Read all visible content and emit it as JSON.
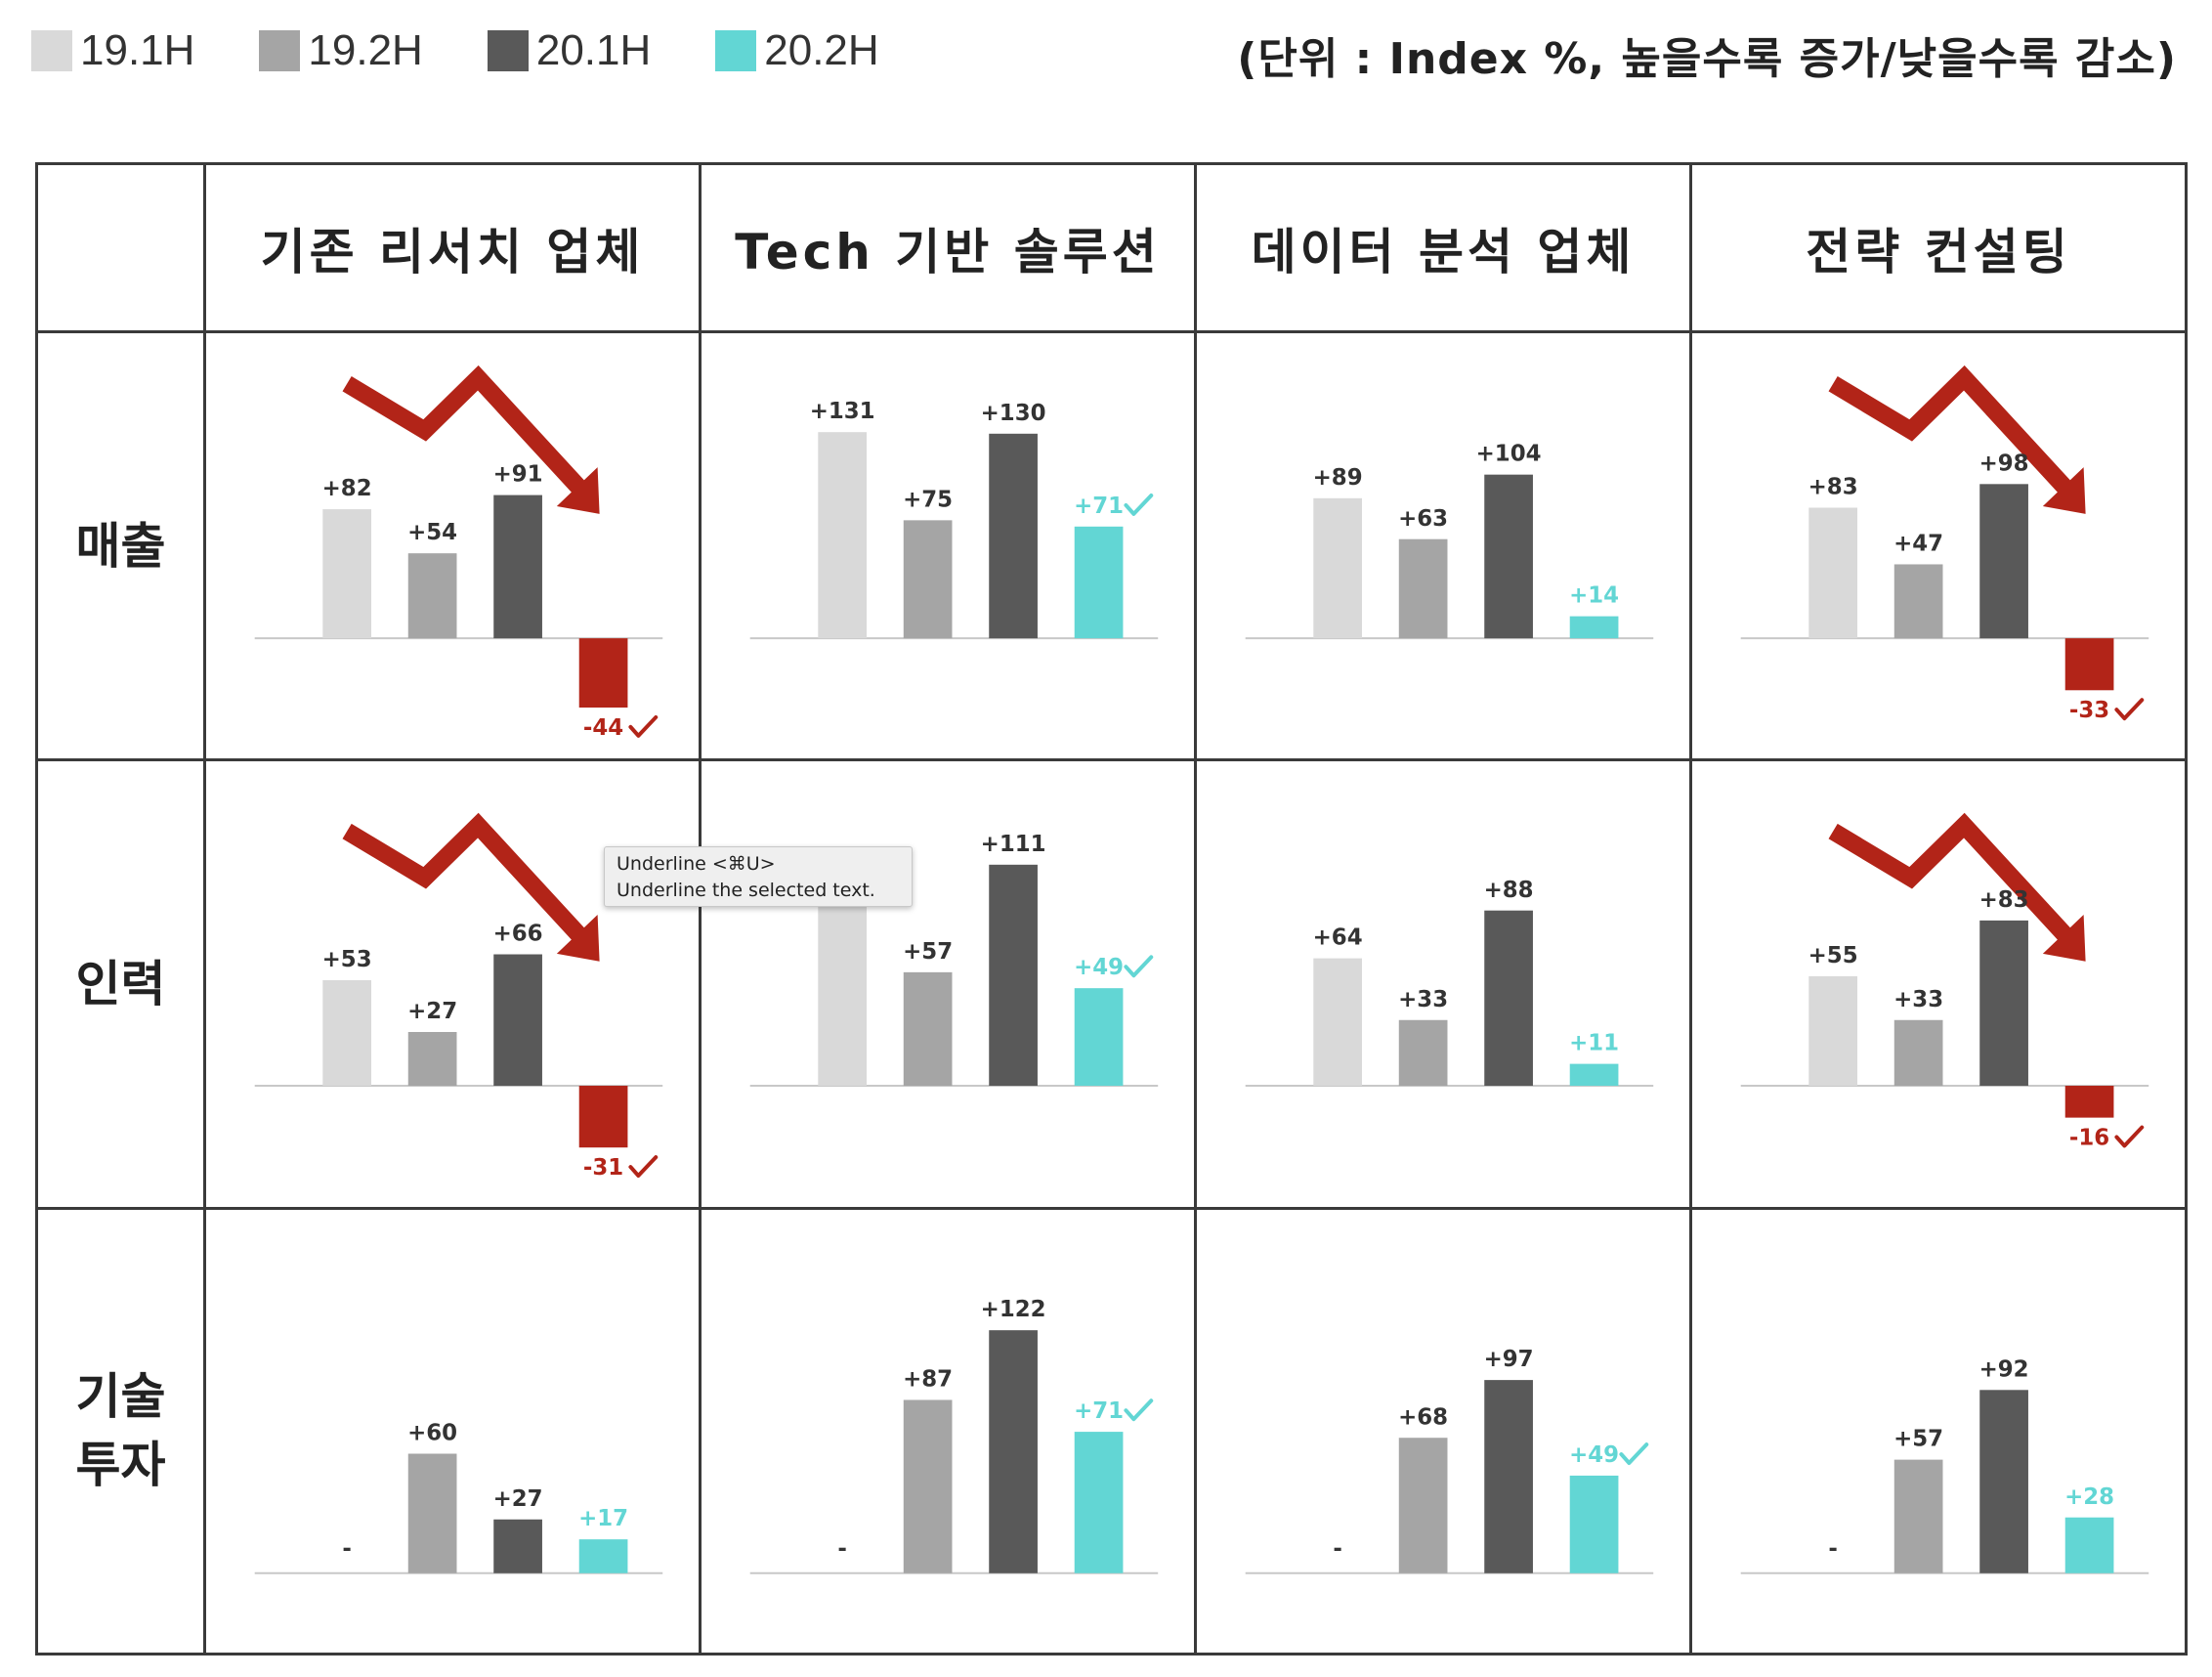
{
  "colors": {
    "s1": "#d9d9d9",
    "s2": "#a5a5a5",
    "s3": "#595959",
    "s4": "#62d6d4",
    "neg": "#b22418",
    "label": "#333333"
  },
  "legend": [
    {
      "label": "19.1H",
      "color": "#d9d9d9"
    },
    {
      "label": "19.2H",
      "color": "#a5a5a5"
    },
    {
      "label": "20.1H",
      "color": "#595959"
    },
    {
      "label": "20.2H",
      "color": "#62d6d4"
    }
  ],
  "unit_note": "(단위 : Index %, 높을수록 증가/낮을수록 감소)",
  "columns": [
    "기존 리서치 업체",
    "Tech 기반 솔루션",
    "데이터 분석 업체",
    "전략 컨설팅"
  ],
  "rows": [
    "매출",
    "인력",
    "기술\n투자"
  ],
  "tooltip": {
    "line1": "Underline <⌘U>",
    "line2": "Underline the selected text."
  },
  "chart_data": [
    {
      "type": "bar",
      "row": "매출",
      "column": "기존 리서치 업체",
      "categories": [
        "19.1H",
        "19.2H",
        "20.1H",
        "20.2H"
      ],
      "values": [
        82,
        54,
        91,
        -44
      ],
      "labels": [
        "+82",
        "+54",
        "+91",
        "-44"
      ],
      "trend_arrow": "down",
      "checked": 3
    },
    {
      "type": "bar",
      "row": "매출",
      "column": "Tech 기반 솔루션",
      "categories": [
        "19.1H",
        "19.2H",
        "20.1H",
        "20.2H"
      ],
      "values": [
        131,
        75,
        130,
        71
      ],
      "labels": [
        "+131",
        "+75",
        "+130",
        "+71"
      ],
      "trend_arrow": null,
      "checked": 3
    },
    {
      "type": "bar",
      "row": "매출",
      "column": "데이터 분석 업체",
      "categories": [
        "19.1H",
        "19.2H",
        "20.1H",
        "20.2H"
      ],
      "values": [
        89,
        63,
        104,
        14
      ],
      "labels": [
        "+89",
        "+63",
        "+104",
        "+14"
      ],
      "trend_arrow": null,
      "checked": null
    },
    {
      "type": "bar",
      "row": "매출",
      "column": "전략 컨설팅",
      "categories": [
        "19.1H",
        "19.2H",
        "20.1H",
        "20.2H"
      ],
      "values": [
        83,
        47,
        98,
        -33
      ],
      "labels": [
        "+83",
        "+47",
        "+98",
        "-33"
      ],
      "trend_arrow": "down",
      "checked": 3
    },
    {
      "type": "bar",
      "row": "인력",
      "column": "기존 리서치 업체",
      "categories": [
        "19.1H",
        "19.2H",
        "20.1H",
        "20.2H"
      ],
      "values": [
        53,
        27,
        66,
        -31
      ],
      "labels": [
        "+53",
        "+27",
        "+66",
        "-31"
      ],
      "trend_arrow": "down",
      "checked": 3
    },
    {
      "type": "bar",
      "row": "인력",
      "column": "Tech 기반 솔루션",
      "categories": [
        "19.1H",
        "19.2H",
        "20.1H",
        "20.2H"
      ],
      "values": [
        102,
        57,
        111,
        49
      ],
      "labels": [
        "",
        "+57",
        "+111",
        "+49"
      ],
      "trend_arrow": null,
      "checked": 3
    },
    {
      "type": "bar",
      "row": "인력",
      "column": "데이터 분석 업체",
      "categories": [
        "19.1H",
        "19.2H",
        "20.1H",
        "20.2H"
      ],
      "values": [
        64,
        33,
        88,
        11
      ],
      "labels": [
        "+64",
        "+33",
        "+88",
        "+11"
      ],
      "trend_arrow": null,
      "checked": null
    },
    {
      "type": "bar",
      "row": "인력",
      "column": "전략 컨설팅",
      "categories": [
        "19.1H",
        "19.2H",
        "20.1H",
        "20.2H"
      ],
      "values": [
        55,
        33,
        83,
        -16
      ],
      "labels": [
        "+55",
        "+33",
        "+83",
        "-16"
      ],
      "trend_arrow": "down",
      "checked": 3
    },
    {
      "type": "bar",
      "row": "기술 투자",
      "column": "기존 리서치 업체",
      "categories": [
        "19.1H",
        "19.2H",
        "20.1H",
        "20.2H"
      ],
      "values": [
        null,
        60,
        27,
        17
      ],
      "labels": [
        "-",
        "+60",
        "+27",
        "+17"
      ],
      "trend_arrow": null,
      "checked": null
    },
    {
      "type": "bar",
      "row": "기술 투자",
      "column": "Tech 기반 솔루션",
      "categories": [
        "19.1H",
        "19.2H",
        "20.1H",
        "20.2H"
      ],
      "values": [
        null,
        87,
        122,
        71
      ],
      "labels": [
        "-",
        "+87",
        "+122",
        "+71"
      ],
      "trend_arrow": null,
      "checked": 3
    },
    {
      "type": "bar",
      "row": "기술 투자",
      "column": "데이터 분석 업체",
      "categories": [
        "19.1H",
        "19.2H",
        "20.1H",
        "20.2H"
      ],
      "values": [
        null,
        68,
        97,
        49
      ],
      "labels": [
        "-",
        "+68",
        "+97",
        "+49"
      ],
      "trend_arrow": null,
      "checked": 3
    },
    {
      "type": "bar",
      "row": "기술 투자",
      "column": "전략 컨설팅",
      "categories": [
        "19.1H",
        "19.2H",
        "20.1H",
        "20.2H"
      ],
      "values": [
        null,
        57,
        92,
        28
      ],
      "labels": [
        "-",
        "+57",
        "+92",
        "+28"
      ],
      "trend_arrow": null,
      "checked": null
    }
  ]
}
